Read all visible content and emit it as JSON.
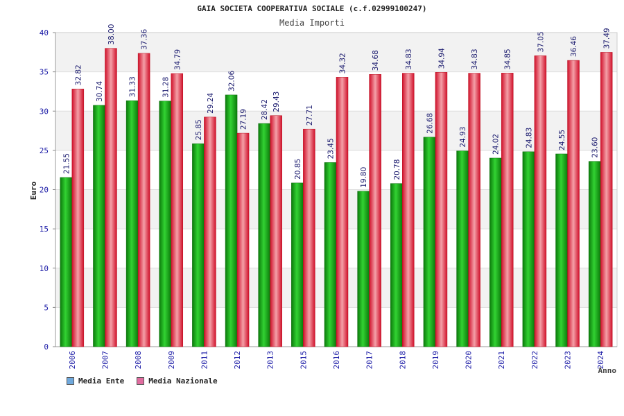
{
  "header": {
    "title": "GAIA SOCIETA COOPERATIVA SOCIALE (c.f.02999100247)",
    "subtitle": "Media Importi"
  },
  "legend": {
    "ente_label": "Media Ente",
    "ente_color": "#6fa8dc",
    "nazionale_label": "Media Nazionale",
    "nazionale_color": "#e06c9f"
  },
  "chart_data": {
    "type": "bar",
    "title": "Media Importi",
    "xlabel": "Anno",
    "ylabel": "Euro",
    "ylim": [
      0,
      40
    ],
    "yticks": [
      0,
      5,
      10,
      15,
      20,
      25,
      30,
      35,
      40
    ],
    "categories": [
      "2006",
      "2007",
      "2008",
      "2009",
      "2011",
      "2012",
      "2013",
      "2015",
      "2016",
      "2017",
      "2018",
      "2019",
      "2020",
      "2021",
      "2022",
      "2023",
      "2024"
    ],
    "series": [
      {
        "name": "Media Ente",
        "color": "#0a9a0a",
        "values": [
          21.55,
          30.74,
          31.33,
          31.28,
          25.85,
          32.06,
          28.42,
          20.85,
          23.45,
          19.8,
          20.78,
          26.68,
          24.93,
          24.02,
          24.83,
          24.55,
          23.6
        ],
        "labels": [
          "21.55",
          "30.74",
          "31.33",
          "31.28",
          "25.85",
          "32.06",
          "28.42",
          "20.85",
          "23.45",
          "19.80",
          "20.78",
          "26.68",
          "24.93",
          "24.02",
          "24.83",
          "24.55",
          "23.60"
        ]
      },
      {
        "name": "Media Nazionale",
        "color": "#e0303c",
        "values": [
          32.82,
          38.0,
          37.36,
          34.79,
          29.24,
          27.19,
          29.43,
          27.71,
          34.32,
          34.68,
          34.83,
          34.94,
          34.83,
          34.85,
          37.05,
          36.46,
          37.49
        ],
        "labels": [
          "32.82",
          "38.00",
          "37.36",
          "34.79",
          "29.24",
          "27.19",
          "29.43",
          "27.71",
          "34.32",
          "34.68",
          "34.83",
          "34.94",
          "34.83",
          "34.85",
          "37.05",
          "36.46",
          "37.49"
        ]
      }
    ]
  }
}
